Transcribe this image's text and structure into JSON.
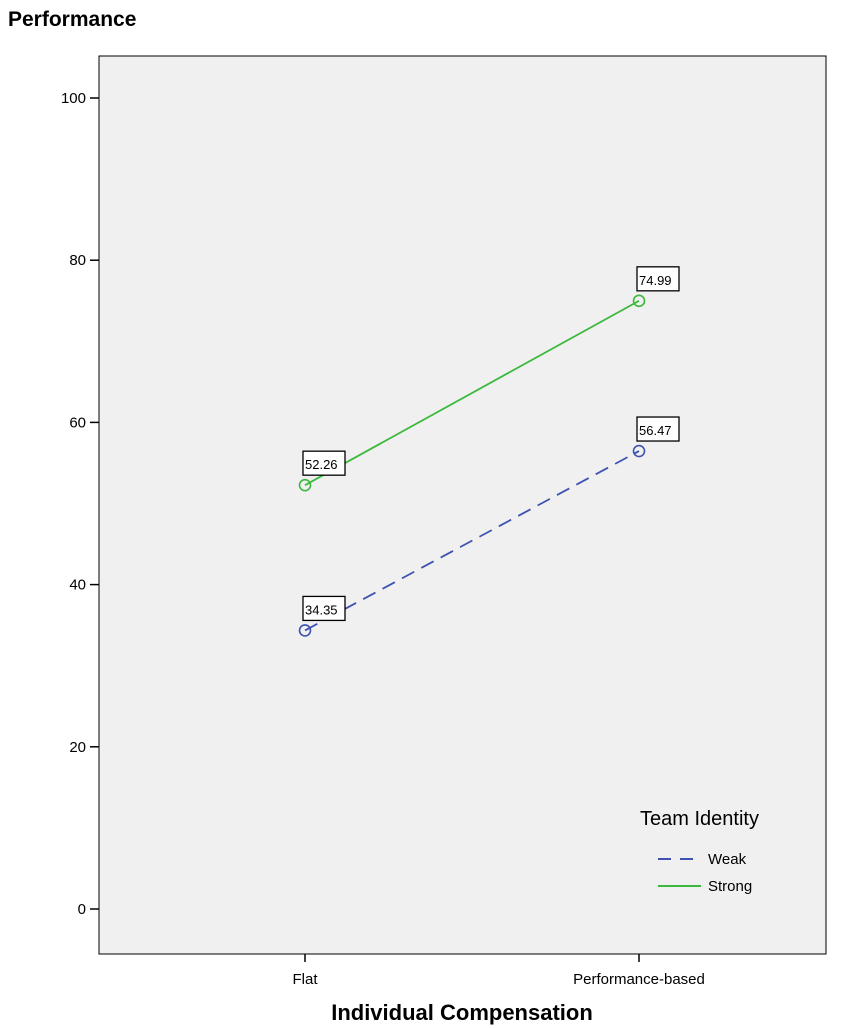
{
  "chart_data": {
    "type": "line",
    "title": "",
    "ylabel": "Performance",
    "xlabel": "Individual Compensation",
    "categories": [
      "Flat",
      "Performance-based"
    ],
    "ylim": [
      0,
      100
    ],
    "yticks": [
      0,
      20,
      40,
      60,
      80,
      100
    ],
    "grid": false,
    "legend": {
      "title": "Team Identity",
      "placement": "bottom-right"
    },
    "series": [
      {
        "name": "Weak",
        "values": [
          34.35,
          56.47
        ],
        "labels": [
          "34.35",
          "56.47"
        ],
        "color": "#3f52b1",
        "style": "dashed"
      },
      {
        "name": "Strong",
        "values": [
          52.26,
          74.99
        ],
        "labels": [
          "52.26",
          "74.99"
        ],
        "color": "#3cb93c",
        "style": "solid"
      }
    ]
  }
}
